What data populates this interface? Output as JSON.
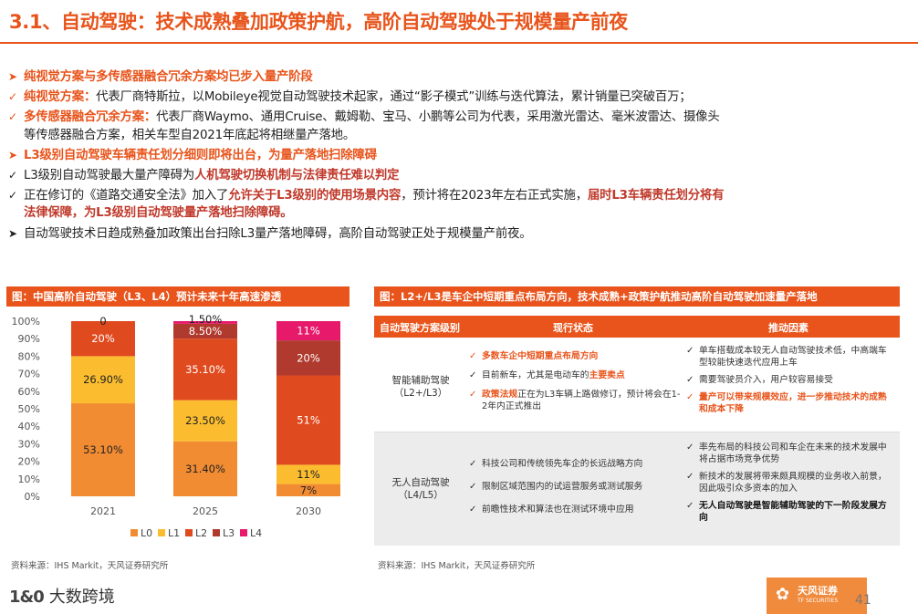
{
  "title": "3.1、自动驾驶：技术成熟叠加政策护航，高阶自动驾驶处于规模量产前夜",
  "bullets": {
    "b1": "纯视觉方案与多传感器融合冗余方案均已步入量产阶段",
    "b2_head": "纯视觉方案：",
    "b2_body": "代表厂商特斯拉，以Mobileye视觉自动驾驶技术起家，通过“影子模式”训练与迭代算法，累计销量已突破百万；",
    "b3_head": "多传感器融合冗余方案：",
    "b3_body": "代表厂商Waymo、通用Cruise、戴姆勒、宝马、小鹏等公司为代表，采用激光雷达、毫米波雷达、摄像头",
    "b3_body2": "等传感器融合方案，相关车型自2021年底起将相继量产落地。",
    "b4": "L3级别自动驾驶车辆责任划分细则即将出台，为量产落地扫除障碍",
    "b5_pre": "L3级别自动驾驶最大量产障碍为",
    "b5_hl": "人机驾驶切换机制与法律责任难以判定",
    "b6_pre": "正在修订的《道路交通安全法》加入了",
    "b6_hl1": "允许关于L3级别的使用场景内容",
    "b6_mid": "，预计将在2023年左右正式实施，",
    "b6_hl2": "届时L3车辆责任划分将有",
    "b6_hl3": "法律保障，为L3级别自动驾驶量产落地扫除障碍。",
    "b7": "自动驾驶技术日趋成熟叠加政策出台扫除L3量产落地障碍，高阶自动驾驶正处于规模量产前夜。"
  },
  "left_panel": {
    "title": "图：中国高阶自动驾驶（L3、L4）预计未来十年高速渗透",
    "source": "资料来源：IHS Markit，天风证券研究所"
  },
  "chart_data": {
    "type": "bar",
    "stacked": true,
    "categories": [
      "2021",
      "2025",
      "2030"
    ],
    "series": [
      {
        "name": "L0",
        "values": [
          53.1,
          31.4,
          7
        ],
        "labels": [
          "53.10%",
          "31.40%",
          "7%"
        ],
        "color": "#f28c33"
      },
      {
        "name": "L1",
        "values": [
          26.9,
          23.5,
          11
        ],
        "labels": [
          "26.90%",
          "23.50%",
          "11%"
        ],
        "color": "#fbbd2f"
      },
      {
        "name": "L2",
        "values": [
          20,
          35.1,
          51
        ],
        "labels": [
          "20%",
          "35.10%",
          "51%"
        ],
        "color": "#e04a1f"
      },
      {
        "name": "L3",
        "values": [
          0,
          8.5,
          20
        ],
        "labels": [
          "0",
          "8.50%",
          "20%"
        ],
        "color": "#b03a2e"
      },
      {
        "name": "L4",
        "values": [
          0,
          1.5,
          11
        ],
        "labels": [
          "",
          "1.50%",
          "11%"
        ],
        "color": "#e6196b"
      }
    ],
    "yticks": [
      "0%",
      "10%",
      "20%",
      "30%",
      "40%",
      "50%",
      "60%",
      "70%",
      "80%",
      "90%",
      "100%"
    ],
    "ylim": [
      0,
      100
    ],
    "legend": "bottom"
  },
  "right_panel": {
    "title": "图：L2+/L3是车企中短期重点布局方向，技术成熟+政策护航推动高阶自动驾驶加速量产落地",
    "headers": [
      "自动驾驶方案级别",
      "现行状态",
      "推动因素"
    ],
    "row1_label1": "智能辅助驾驶",
    "row1_label2": "（L2+/L3）",
    "row1_s1": "多数车企中短期重点布局方向",
    "row1_s2_pre": "目前新车，尤其是电动车的",
    "row1_s2_hl": "主要卖点",
    "row1_s3_hl": "政策法规",
    "row1_s3_body": "正在为L3车辆上路做修订，预计将会在1-2年内正式推出",
    "row1_d1": "单车搭载成本较无人自动驾驶技术低，中高端车型较能快速迭代应用上车",
    "row1_d2": "需要驾驶员介入，用户较容易接受",
    "row1_d3": "量产可以带来规模效应，进一步推动技术的成熟和成本下降",
    "row2_label1": "无人自动驾驶",
    "row2_label2": "（L4/L5）",
    "row2_s1": "科技公司和传统领先车企的长远战略方向",
    "row2_s2": "限制区域范围内的试运营服务或测试服务",
    "row2_s3": "前瞻性技术和算法也在测试环境中应用",
    "row2_d1": "率先布局的科技公司和车企在未来的技术发展中将占据市场竞争优势",
    "row2_d2": "新技术的发展将带来颇具规模的业务收入前景，因此吸引众多资本的加入",
    "row2_d3": "无人自动驾驶是智能辅助驾驶的下一阶段发展方向",
    "source": "资料来源：IHS Markit，天风证券研究所"
  },
  "footer": {
    "logo_mark": "1&0",
    "logo_text": "大数跨境",
    "brand": "天风证券",
    "brand_sub": "TF SECURITIES",
    "page": "41"
  }
}
